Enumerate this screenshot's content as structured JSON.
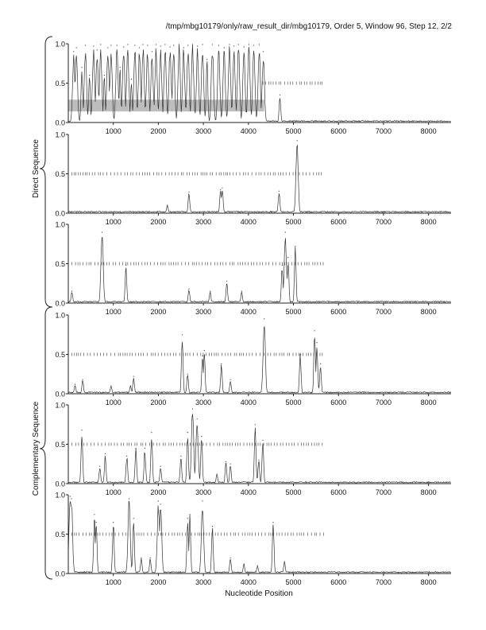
{
  "header": {
    "title": "/tmp/mbg10179/only/raw_result_dir/mbg10179, Order 5, Window 96, Step 12, 2/2"
  },
  "colors": {
    "axis": "#222222",
    "trace": "#333333",
    "band": "#bdbdbd",
    "ticks": "#555555"
  },
  "chart_data": {
    "type": "line",
    "title": "/tmp/mbg10179/only/raw_result_dir/mbg10179, Order 5, Window 96, Step 12, 2/2",
    "xlabel": "Nucleotide Position",
    "xlim": [
      0,
      8500
    ],
    "ylim": [
      0,
      1
    ],
    "x_ticks": [
      "1000",
      "2000",
      "3000",
      "4000",
      "5000",
      "6000",
      "7000",
      "8000"
    ],
    "y_ticks": [
      "0.0",
      "0.5",
      "1.0"
    ],
    "group_labels": [
      "Direct Sequence",
      "Complementary Sequence"
    ],
    "panels": [
      {
        "frame": 1,
        "strand": "direct",
        "peaks": [
          [
            120,
            0.9
          ],
          [
            180,
            0.95
          ],
          [
            300,
            0.7
          ],
          [
            380,
            0.98
          ],
          [
            470,
            0.6
          ],
          [
            560,
            0.97
          ],
          [
            640,
            0.92
          ],
          [
            720,
            0.99
          ],
          [
            800,
            0.6
          ],
          [
            880,
            0.95
          ],
          [
            950,
            0.98
          ],
          [
            1080,
            0.98
          ],
          [
            1150,
            0.7
          ],
          [
            1230,
            0.96
          ],
          [
            1320,
            0.99
          ],
          [
            1400,
            0.55
          ],
          [
            1480,
            0.98
          ],
          [
            1580,
            0.95
          ],
          [
            1660,
            0.99
          ],
          [
            1760,
            0.98
          ],
          [
            1860,
            0.9
          ],
          [
            1950,
            0.99
          ],
          [
            2050,
            0.97
          ],
          [
            2150,
            0.99
          ],
          [
            2260,
            0.96
          ],
          [
            2340,
            0.98
          ],
          [
            2460,
            0.99
          ],
          [
            2560,
            0.95
          ],
          [
            2660,
            0.98
          ],
          [
            2760,
            0.99
          ],
          [
            2870,
            0.97
          ],
          [
            2980,
            0.99
          ],
          [
            3080,
            0.8
          ],
          [
            3200,
            0.99
          ],
          [
            3340,
            0.98
          ],
          [
            3460,
            0.95
          ],
          [
            3580,
            0.99
          ],
          [
            3680,
            0.97
          ],
          [
            3780,
            0.99
          ],
          [
            3900,
            0.96
          ],
          [
            4010,
            0.99
          ],
          [
            4120,
            0.98
          ],
          [
            4240,
            0.99
          ],
          [
            4330,
            0.9
          ],
          [
            4700,
            0.35
          ]
        ],
        "orf_ticks_start": 4320,
        "orf_ticks_end": 5700,
        "band": [
          0,
          4350
        ]
      },
      {
        "frame": 2,
        "strand": "direct",
        "peaks": [
          [
            2200,
            0.1
          ],
          [
            2680,
            0.27
          ],
          [
            3380,
            0.3
          ],
          [
            3420,
            0.32
          ],
          [
            4680,
            0.28
          ],
          [
            5080,
            0.92
          ]
        ],
        "orf_ticks_start": 80,
        "orf_ticks_end": 5700
      },
      {
        "frame": 3,
        "strand": "direct",
        "peaks": [
          [
            80,
            0.15
          ],
          [
            750,
            0.9
          ],
          [
            1280,
            0.48
          ],
          [
            2680,
            0.18
          ],
          [
            3150,
            0.15
          ],
          [
            3520,
            0.28
          ],
          [
            3850,
            0.15
          ],
          [
            4750,
            0.48
          ],
          [
            4820,
            0.9
          ],
          [
            4880,
            0.58
          ],
          [
            5040,
            0.72
          ]
        ],
        "orf_ticks_start": 80,
        "orf_ticks_end": 5700
      },
      {
        "frame": 1,
        "strand": "complementary",
        "peaks": [
          [
            150,
            0.12
          ],
          [
            320,
            0.18
          ],
          [
            950,
            0.1
          ],
          [
            1450,
            0.22
          ],
          [
            1380,
            0.1
          ],
          [
            2530,
            0.75
          ],
          [
            2650,
            0.25
          ],
          [
            2980,
            0.48
          ],
          [
            3020,
            0.55
          ],
          [
            3400,
            0.38
          ],
          [
            3600,
            0.18
          ],
          [
            4350,
            0.95
          ],
          [
            5150,
            0.5
          ],
          [
            5470,
            0.8
          ],
          [
            5520,
            0.65
          ],
          [
            5600,
            0.38
          ]
        ],
        "orf_ticks_start": 80,
        "orf_ticks_end": 5700
      },
      {
        "frame": 2,
        "strand": "complementary",
        "peaks": [
          [
            300,
            0.68
          ],
          [
            700,
            0.22
          ],
          [
            820,
            0.38
          ],
          [
            1300,
            0.35
          ],
          [
            1500,
            0.45
          ],
          [
            1700,
            0.45
          ],
          [
            1850,
            0.65
          ],
          [
            2050,
            0.22
          ],
          [
            2500,
            0.35
          ],
          [
            2650,
            0.65
          ],
          [
            2760,
            0.95
          ],
          [
            2860,
            0.82
          ],
          [
            2960,
            0.6
          ],
          [
            3300,
            0.12
          ],
          [
            3500,
            0.28
          ],
          [
            3600,
            0.25
          ],
          [
            4150,
            0.75
          ],
          [
            4230,
            0.3
          ],
          [
            4320,
            0.55
          ]
        ],
        "orf_ticks_start": 80,
        "orf_ticks_end": 5700
      },
      {
        "frame": 3,
        "strand": "complementary",
        "peaks": [
          [
            40,
            0.98
          ],
          [
            70,
            0.95
          ],
          [
            580,
            0.75
          ],
          [
            620,
            0.65
          ],
          [
            1000,
            0.65
          ],
          [
            1350,
            0.95
          ],
          [
            1450,
            0.7
          ],
          [
            1620,
            0.2
          ],
          [
            1820,
            0.2
          ],
          [
            2000,
            0.92
          ],
          [
            2050,
            0.88
          ],
          [
            2650,
            0.7
          ],
          [
            2700,
            0.75
          ],
          [
            2980,
            0.92
          ],
          [
            3200,
            0.6
          ],
          [
            3600,
            0.2
          ],
          [
            3900,
            0.12
          ],
          [
            4200,
            0.1
          ],
          [
            4550,
            0.65
          ],
          [
            4800,
            0.15
          ]
        ],
        "orf_ticks_start": 80,
        "orf_ticks_end": 5700
      }
    ]
  }
}
